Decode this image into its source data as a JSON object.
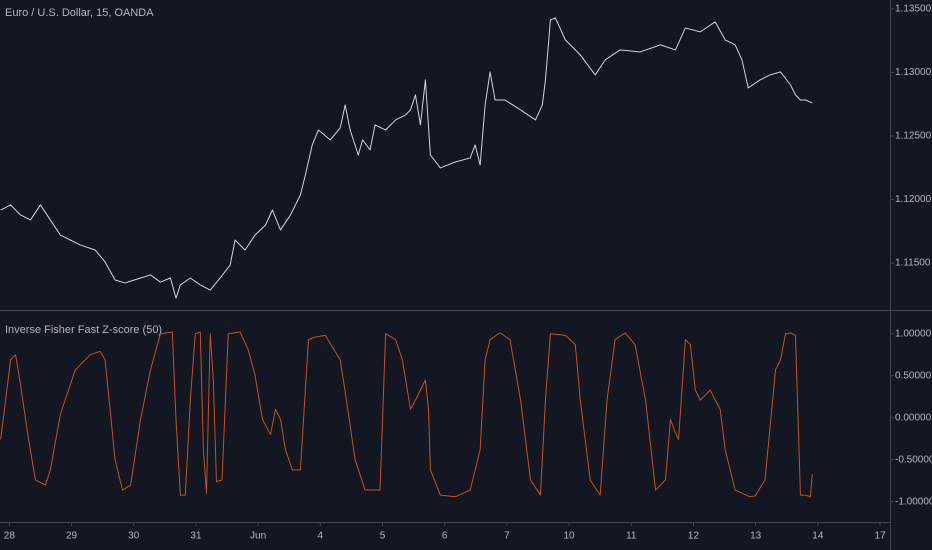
{
  "chart_data": [
    {
      "type": "line",
      "title": "Euro / U.S. Dollar, 15, OANDA",
      "color": "#d1d4dc",
      "grid": false,
      "x": [
        -0.14,
        0.02,
        0.18,
        0.34,
        0.5,
        0.66,
        0.82,
        0.98,
        1.14,
        1.38,
        1.54,
        1.7,
        1.86,
        2.11,
        2.27,
        2.43,
        2.59,
        2.68,
        2.75,
        2.91,
        3.07,
        3.23,
        3.39,
        3.55,
        3.63,
        3.79,
        3.95,
        4.12,
        4.23,
        4.36,
        4.52,
        4.68,
        4.76,
        4.87,
        4.97,
        5.16,
        5.32,
        5.4,
        5.48,
        5.61,
        5.68,
        5.8,
        5.88,
        6.05,
        6.21,
        6.37,
        6.45,
        6.53,
        6.61,
        6.69,
        6.77,
        6.93,
        7.17,
        7.41,
        7.49,
        7.57,
        7.65,
        7.73,
        7.81,
        7.97,
        8.22,
        8.46,
        8.57,
        8.62,
        8.7,
        8.78,
        8.94,
        9.18,
        9.42,
        9.58,
        9.82,
        10.14,
        10.47,
        10.71,
        10.87,
        11.11,
        11.35,
        11.51,
        11.67,
        11.78,
        11.88,
        12.07,
        12.23,
        12.4,
        12.56,
        12.64,
        12.72,
        12.8,
        12.91
      ],
      "values": [
        1.11917,
        1.11957,
        1.11878,
        1.11839,
        1.11957,
        1.11839,
        1.1172,
        1.11681,
        1.11642,
        1.11602,
        1.11508,
        1.11366,
        1.11343,
        1.11382,
        1.11406,
        1.1135,
        1.11382,
        1.11224,
        1.11327,
        1.11382,
        1.11327,
        1.11287,
        1.11382,
        1.11484,
        1.11681,
        1.11602,
        1.1172,
        1.11799,
        1.11917,
        1.1176,
        1.11878,
        1.12035,
        1.12193,
        1.12429,
        1.12547,
        1.12469,
        1.12563,
        1.12744,
        1.12547,
        1.1235,
        1.12469,
        1.1239,
        1.12587,
        1.12547,
        1.12626,
        1.12665,
        1.12705,
        1.12823,
        1.12587,
        1.12941,
        1.1235,
        1.12248,
        1.12295,
        1.12327,
        1.12429,
        1.12272,
        1.12744,
        1.13004,
        1.12783,
        1.12783,
        1.12705,
        1.12626,
        1.12744,
        1.12941,
        1.13413,
        1.13429,
        1.13256,
        1.13138,
        1.1298,
        1.13098,
        1.13177,
        1.13161,
        1.13217,
        1.13177,
        1.1335,
        1.13319,
        1.13398,
        1.13256,
        1.13217,
        1.13098,
        1.12878,
        1.12941,
        1.1298,
        1.13004,
        1.12902,
        1.12823,
        1.12783,
        1.12783,
        1.1276
      ],
      "xlim": [
        -0.15,
        14.16
      ],
      "ylim": [
        1.1113,
        1.1357
      ],
      "yticks": [
        {
          "value": 1.135,
          "label": "1.13500"
        },
        {
          "value": 1.13,
          "label": "1.13000"
        },
        {
          "value": 1.125,
          "label": "1.12500"
        },
        {
          "value": 1.12,
          "label": "1.12000"
        },
        {
          "value": 1.115,
          "label": "1.11500"
        }
      ]
    },
    {
      "type": "line",
      "title": "Inverse Fisher Fast Z-score (50)",
      "color": "#c4511f",
      "grid": false,
      "x": [
        -0.14,
        -0.06,
        0.02,
        0.1,
        0.18,
        0.31,
        0.42,
        0.58,
        0.66,
        0.82,
        1.06,
        1.3,
        1.46,
        1.54,
        1.62,
        1.7,
        1.82,
        1.95,
        2.11,
        2.27,
        2.43,
        2.62,
        2.68,
        2.75,
        2.83,
        2.91,
        2.99,
        3.07,
        3.12,
        3.17,
        3.23,
        3.28,
        3.33,
        3.42,
        3.52,
        3.71,
        3.84,
        3.95,
        4.07,
        4.2,
        4.28,
        4.36,
        4.44,
        4.55,
        4.68,
        4.81,
        4.92,
        5.08,
        5.32,
        5.42,
        5.56,
        5.72,
        5.96,
        6.05,
        6.21,
        6.32,
        6.45,
        6.53,
        6.61,
        6.69,
        6.74,
        6.77,
        6.93,
        7.17,
        7.41,
        7.57,
        7.65,
        7.73,
        7.89,
        8.05,
        8.22,
        8.38,
        8.54,
        8.62,
        8.7,
        8.94,
        9.1,
        9.18,
        9.34,
        9.5,
        9.61,
        9.74,
        9.9,
        10.06,
        10.23,
        10.39,
        10.55,
        10.63,
        10.69,
        10.76,
        10.87,
        10.95,
        11.03,
        11.11,
        11.27,
        11.35,
        11.43,
        11.51,
        11.67,
        11.91,
        11.99,
        12.15,
        12.32,
        12.4,
        12.48,
        12.56,
        12.64,
        12.72,
        12.8,
        12.88,
        12.91
      ],
      "values": [
        -0.26,
        0.21,
        0.69,
        0.75,
        0.39,
        -0.26,
        -0.74,
        -0.8,
        -0.62,
        0.04,
        0.57,
        0.75,
        0.79,
        0.69,
        0.1,
        -0.5,
        -0.86,
        -0.8,
        -0.02,
        0.57,
        1.0,
        1.02,
        -0.02,
        -0.92,
        -0.92,
        0.21,
        1.0,
        1.02,
        -0.38,
        -0.9,
        1.0,
        0.45,
        -0.76,
        -0.74,
        1.0,
        1.02,
        0.81,
        0.51,
        -0.02,
        -0.2,
        0.1,
        -0.02,
        -0.38,
        -0.62,
        -0.62,
        0.93,
        0.96,
        0.98,
        0.69,
        0.21,
        -0.5,
        -0.86,
        -0.86,
        1.0,
        0.93,
        0.69,
        0.1,
        0.21,
        0.33,
        0.45,
        0.1,
        -0.62,
        -0.92,
        -0.94,
        -0.86,
        -0.38,
        0.69,
        0.93,
        1.01,
        0.93,
        0.21,
        -0.74,
        -0.92,
        0.21,
        1.0,
        0.98,
        0.87,
        0.21,
        -0.74,
        -0.92,
        0.21,
        0.93,
        1.01,
        0.87,
        0.21,
        -0.86,
        -0.74,
        -0.02,
        -0.14,
        -0.26,
        0.93,
        0.87,
        0.33,
        0.21,
        0.33,
        0.21,
        0.1,
        -0.38,
        -0.86,
        -0.94,
        -0.93,
        -0.74,
        0.57,
        0.69,
        1.0,
        1.01,
        0.98,
        -0.92,
        -0.92,
        -0.94,
        -0.67
      ],
      "xlim": [
        -0.15,
        14.16
      ],
      "ylim": [
        -1.24,
        1.27
      ],
      "yticks": [
        {
          "value": 1,
          "label": "1.00000"
        },
        {
          "value": 0.5,
          "label": "0.50000"
        },
        {
          "value": 0,
          "label": "0.00000"
        },
        {
          "value": -0.5,
          "label": "-0.50000"
        },
        {
          "value": -1,
          "label": "-1.00000"
        }
      ],
      "xticks": [
        {
          "value": 0,
          "label": "28"
        },
        {
          "value": 1,
          "label": "29"
        },
        {
          "value": 2,
          "label": "30"
        },
        {
          "value": 3,
          "label": "31"
        },
        {
          "value": 4,
          "label": "Jun"
        },
        {
          "value": 5,
          "label": "4"
        },
        {
          "value": 6,
          "label": "5"
        },
        {
          "value": 7,
          "label": "6"
        },
        {
          "value": 8,
          "label": "7"
        },
        {
          "value": 9,
          "label": "10"
        },
        {
          "value": 10,
          "label": "11"
        },
        {
          "value": 11,
          "label": "12"
        },
        {
          "value": 12,
          "label": "13"
        },
        {
          "value": 13,
          "label": "14"
        },
        {
          "value": 14,
          "label": "17"
        }
      ]
    }
  ]
}
